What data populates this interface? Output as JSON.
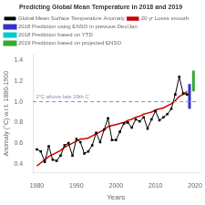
{
  "chart_data": {
    "type": "line",
    "title": "Predicting Global Mean Temperature in 2018 and 2019",
    "xlabel": "Years",
    "ylabel": "Anomaly (°C) w.r.t. 1880-1900",
    "xlim": [
      1979,
      2021
    ],
    "ylim": [
      0.32,
      1.45
    ],
    "xticks": [
      1980,
      1990,
      2000,
      2010,
      2020
    ],
    "yticks": [
      0.4,
      0.6,
      0.8,
      {
        "value": 1.0,
        "label": "1.0"
      },
      1.2,
      1.4
    ],
    "grid": false,
    "legend": "upper left",
    "x": [
      1980,
      1981,
      1982,
      1983,
      1984,
      1985,
      1986,
      1987,
      1988,
      1989,
      1990,
      1991,
      1992,
      1993,
      1994,
      1995,
      1996,
      1997,
      1998,
      1999,
      2000,
      2001,
      2002,
      2003,
      2004,
      2005,
      2006,
      2007,
      2008,
      2009,
      2010,
      2011,
      2012,
      2013,
      2014,
      2015,
      2016,
      2017,
      2018
    ],
    "series": [
      {
        "name": "Global Mean Surface Temperature Anomaly",
        "color": "#000000",
        "marker": "square",
        "values": [
          0.54,
          0.52,
          0.42,
          0.57,
          0.44,
          0.43,
          0.48,
          0.58,
          0.6,
          0.48,
          0.64,
          0.61,
          0.5,
          0.52,
          0.58,
          0.7,
          0.61,
          0.73,
          0.84,
          0.63,
          0.63,
          0.71,
          0.79,
          0.8,
          0.75,
          0.83,
          0.81,
          0.85,
          0.74,
          0.83,
          0.91,
          0.82,
          0.85,
          0.88,
          0.93,
          1.07,
          1.24,
          1.08,
          1.07
        ]
      },
      {
        "name": "20 yr Loess smooth",
        "color": "#cc0000",
        "values": [
          0.38,
          0.41,
          0.44,
          0.47,
          0.49,
          0.51,
          0.53,
          0.56,
          0.58,
          0.6,
          0.62,
          0.64,
          0.64,
          0.65,
          0.67,
          0.69,
          0.71,
          0.73,
          0.76,
          0.77,
          0.78,
          0.79,
          0.8,
          0.82,
          0.83,
          0.85,
          0.86,
          0.88,
          0.89,
          0.9,
          0.92,
          0.93,
          0.94,
          0.96,
          0.98,
          1.01,
          1.05,
          1.07,
          1.1
        ]
      },
      {
        "name": "2018 Prediction using ENSO in previous Dec/Jan",
        "color": "#3333cc",
        "type": "interval",
        "x": 2018.6,
        "low": 0.93,
        "high": 1.17
      },
      {
        "name": "2018 Prediction based on YTD",
        "color": "#00cccc",
        "type": "interval"
      },
      {
        "name": "2019 Prediction based on projected ENSO",
        "color": "#33aa33",
        "type": "interval",
        "x": 2019.6,
        "low": 1.1,
        "high": 1.3
      }
    ],
    "annotations": [
      {
        "text": "1°C above late 19th C",
        "y": 1.0,
        "color": "#8888bb",
        "line_style": "dashed"
      }
    ]
  }
}
